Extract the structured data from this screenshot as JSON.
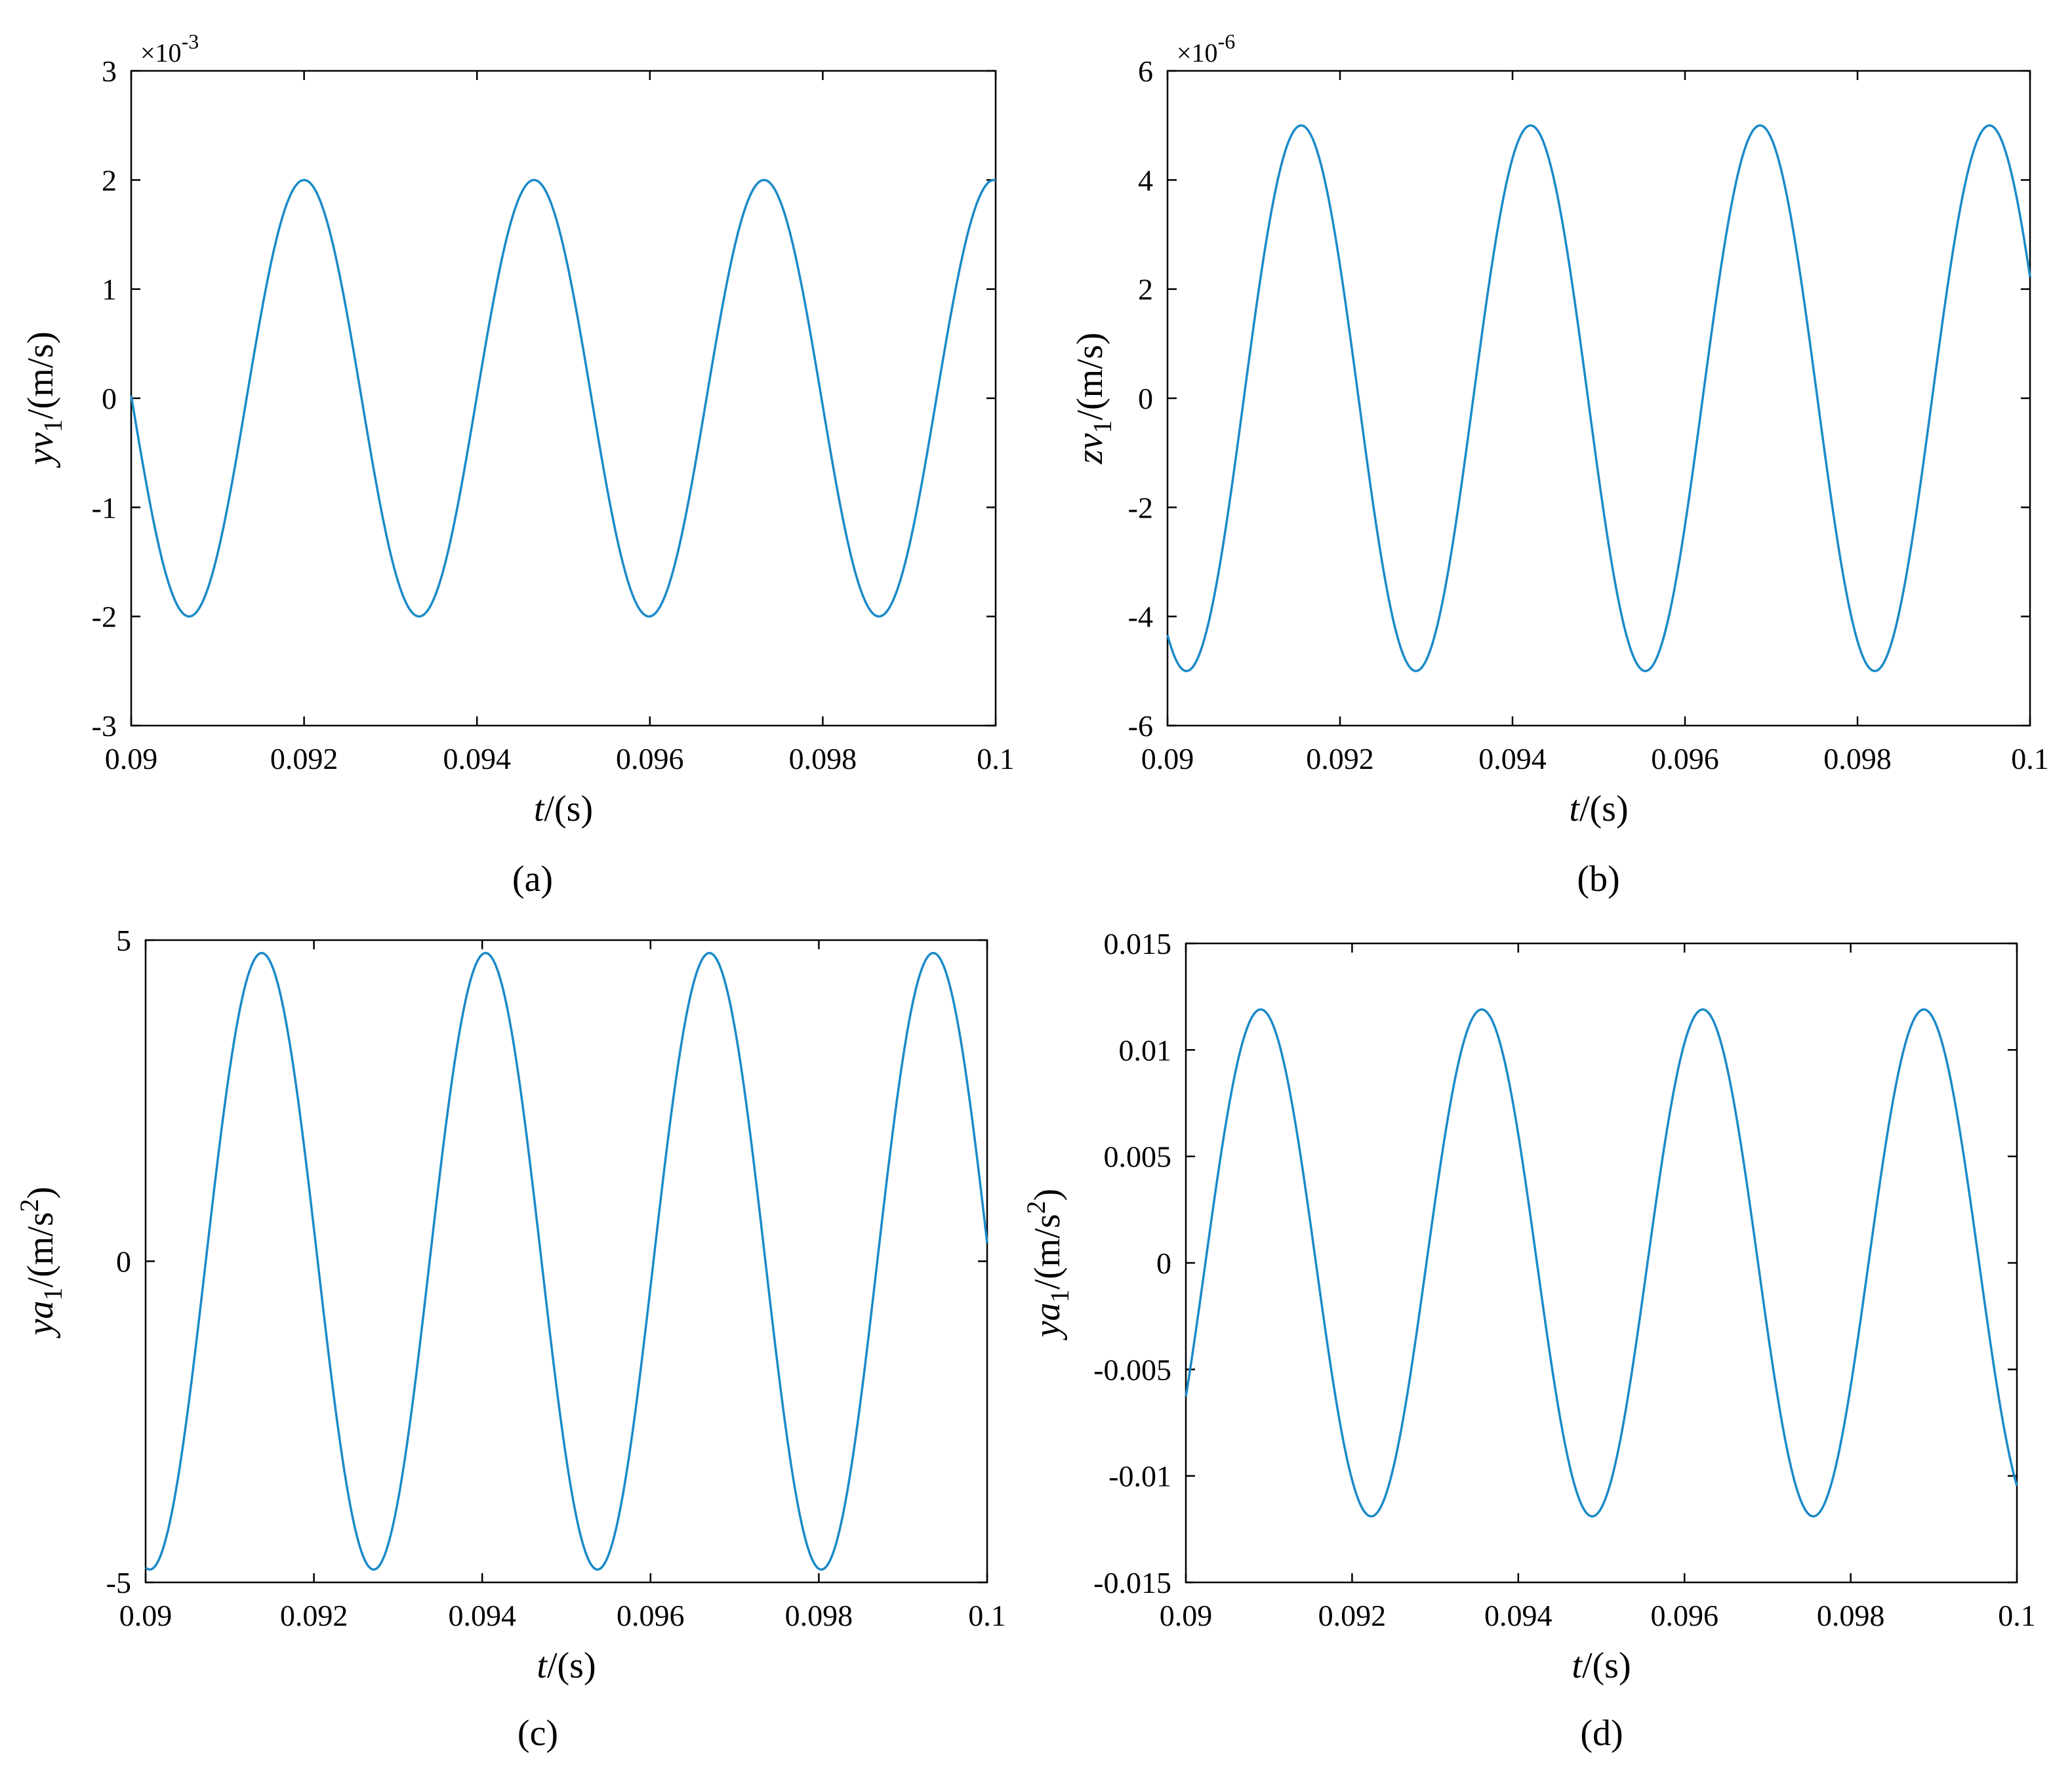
{
  "colors": {
    "line": "#1a8ac8",
    "axis": "#000000"
  },
  "chart_data": [
    {
      "type": "line",
      "panel_label": "(a)",
      "xlabel": {
        "var": "t",
        "unit": "/(s)"
      },
      "ylabel": {
        "var": "yv",
        "sub": "1",
        "unit": "/(m/s)",
        "sup": ""
      },
      "exponent": {
        "base": "×10",
        "power": "-3"
      },
      "xlim": [
        0.09,
        0.1
      ],
      "ylim": [
        -3,
        3
      ],
      "xticks": [
        "0.09",
        "0.092",
        "0.094",
        "0.096",
        "0.098",
        "0.1"
      ],
      "yticks": [
        "-3",
        "-2",
        "-1",
        "0",
        "1",
        "2",
        "3"
      ],
      "series": [
        {
          "amplitude": 2,
          "period_s": 0.00266,
          "peak_t": 0.092,
          "x_start": 0.09,
          "x_end": 0.1
        }
      ]
    },
    {
      "type": "line",
      "panel_label": "(b)",
      "xlabel": {
        "var": "t",
        "unit": "/(s)"
      },
      "ylabel": {
        "var": "zv",
        "sub": "1",
        "unit": "/(m/s)",
        "sup": ""
      },
      "exponent": {
        "base": "×10",
        "power": "-6"
      },
      "xlim": [
        0.09,
        0.1
      ],
      "ylim": [
        -6,
        6
      ],
      "xticks": [
        "0.09",
        "0.092",
        "0.094",
        "0.096",
        "0.098",
        "0.1"
      ],
      "yticks": [
        "-6",
        "-4",
        "-2",
        "0",
        "2",
        "4",
        "6"
      ],
      "series": [
        {
          "amplitude": 5,
          "period_s": 0.00266,
          "peak_t": 0.09155,
          "x_start": 0.09,
          "x_end": 0.1
        }
      ]
    },
    {
      "type": "line",
      "panel_label": "(c)",
      "xlabel": {
        "var": "t",
        "unit": "/(s)"
      },
      "ylabel": {
        "var": "ya",
        "sub": "1",
        "unit": "/(m/s",
        "sup": "2",
        "tail": ")"
      },
      "exponent": null,
      "xlim": [
        0.09,
        0.1
      ],
      "ylim": [
        -5,
        5
      ],
      "xticks": [
        "0.09",
        "0.092",
        "0.094",
        "0.096",
        "0.098",
        "0.1"
      ],
      "yticks": [
        "-5",
        "0",
        "5"
      ],
      "series": [
        {
          "amplitude": 4.8,
          "period_s": 0.00266,
          "peak_t": 0.09138,
          "x_start": 0.09,
          "x_end": 0.1
        }
      ]
    },
    {
      "type": "line",
      "panel_label": "(d)",
      "xlabel": {
        "var": "t",
        "unit": "/(s)"
      },
      "ylabel": {
        "var": "ya",
        "sub": "1",
        "unit": "/(m/s",
        "sup": "2",
        "tail": ")"
      },
      "exponent": null,
      "xlim": [
        0.09,
        0.1
      ],
      "ylim": [
        -0.015,
        0.015
      ],
      "xticks": [
        "0.09",
        "0.092",
        "0.094",
        "0.096",
        "0.098",
        "0.1"
      ],
      "yticks": [
        "-0.015",
        "-0.01",
        "-0.005",
        "0",
        "0.005",
        "0.01",
        "0.015"
      ],
      "series": [
        {
          "amplitude": 0.0119,
          "period_s": 0.00266,
          "peak_t": 0.0909,
          "x_start": 0.09,
          "x_end": 0.1
        }
      ]
    }
  ]
}
